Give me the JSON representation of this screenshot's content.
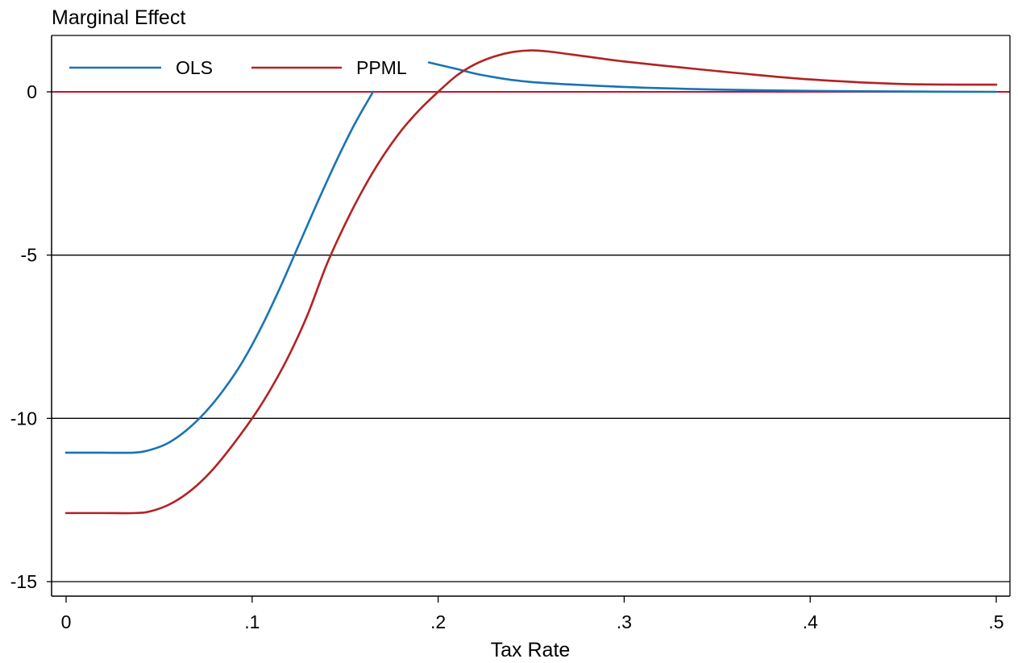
{
  "chart_data": {
    "type": "line",
    "title": "",
    "xlabel": "Tax Rate",
    "ylabel": "Marginal Effect",
    "xlim": [
      0,
      0.5
    ],
    "ylim": [
      -15,
      0
    ],
    "x_ticks": [
      {
        "value": 0,
        "label": "0"
      },
      {
        "value": 0.1,
        "label": ".1"
      },
      {
        "value": 0.2,
        "label": ".2"
      },
      {
        "value": 0.3,
        "label": ".3"
      },
      {
        "value": 0.4,
        "label": ".4"
      },
      {
        "value": 0.5,
        "label": ".5"
      }
    ],
    "y_ticks": [
      {
        "value": 0,
        "label": "0"
      },
      {
        "value": -5,
        "label": "-5"
      },
      {
        "value": -10,
        "label": "-10"
      },
      {
        "value": -15,
        "label": "-15"
      }
    ],
    "grid": "horizontal lines at y ticks",
    "reference_line": {
      "y": 0,
      "color": "#c8102e"
    },
    "legend": {
      "placement": "top-left",
      "orientation": "horizontal"
    },
    "series": [
      {
        "name": "OLS",
        "color": "#1a73b5",
        "segments": [
          [
            [
              0,
              -11.05
            ],
            [
              0.02,
              -11.05
            ],
            [
              0.036,
              -11.05
            ],
            [
              0.045,
              -10.97
            ],
            [
              0.055,
              -10.75
            ],
            [
              0.065,
              -10.35
            ],
            [
              0.075,
              -9.8
            ],
            [
              0.085,
              -9.1
            ],
            [
              0.095,
              -8.25
            ],
            [
              0.105,
              -7.2
            ],
            [
              0.115,
              -6.0
            ],
            [
              0.125,
              -4.7
            ],
            [
              0.135,
              -3.4
            ],
            [
              0.145,
              -2.15
            ],
            [
              0.155,
              -1.0
            ],
            [
              0.165,
              0.0
            ]
          ],
          [
            [
              0.195,
              0.9
            ],
            [
              0.21,
              0.7
            ],
            [
              0.225,
              0.5
            ],
            [
              0.25,
              0.3
            ],
            [
              0.3,
              0.15
            ],
            [
              0.35,
              0.07
            ],
            [
              0.4,
              0.03
            ],
            [
              0.45,
              0.01
            ],
            [
              0.5,
              0.0
            ]
          ]
        ]
      },
      {
        "name": "PPML",
        "color": "#b22222",
        "segments": [
          [
            [
              0,
              -12.9
            ],
            [
              0.02,
              -12.9
            ],
            [
              0.037,
              -12.9
            ],
            [
              0.045,
              -12.85
            ],
            [
              0.055,
              -12.65
            ],
            [
              0.065,
              -12.3
            ],
            [
              0.075,
              -11.8
            ],
            [
              0.085,
              -11.15
            ],
            [
              0.1,
              -10.0
            ],
            [
              0.11,
              -9.1
            ],
            [
              0.12,
              -8.05
            ],
            [
              0.13,
              -6.8
            ],
            [
              0.14,
              -5.3
            ],
            [
              0.15,
              -4.05
            ],
            [
              0.16,
              -2.95
            ],
            [
              0.17,
              -2.0
            ],
            [
              0.18,
              -1.2
            ],
            [
              0.19,
              -0.55
            ],
            [
              0.2,
              0.0
            ],
            [
              0.21,
              0.5
            ],
            [
              0.22,
              0.85
            ],
            [
              0.23,
              1.08
            ],
            [
              0.24,
              1.22
            ],
            [
              0.25,
              1.27
            ],
            [
              0.26,
              1.23
            ],
            [
              0.28,
              1.08
            ],
            [
              0.3,
              0.93
            ],
            [
              0.33,
              0.75
            ],
            [
              0.36,
              0.58
            ],
            [
              0.4,
              0.38
            ],
            [
              0.45,
              0.24
            ],
            [
              0.5,
              0.22
            ]
          ]
        ]
      }
    ]
  }
}
